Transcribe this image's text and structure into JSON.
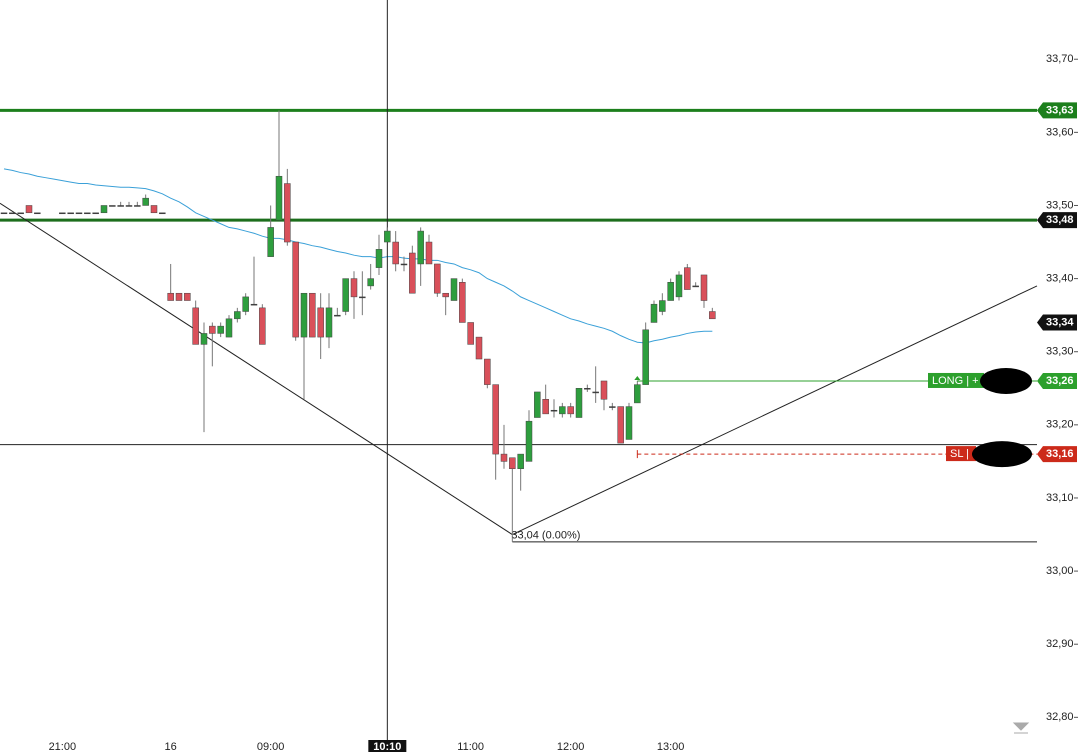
{
  "chart_data": {
    "type": "candlestick",
    "categories": [
      null,
      null,
      null,
      null,
      null,
      null,
      null,
      "21:00",
      null,
      null,
      null,
      null,
      null,
      null,
      null,
      null,
      null,
      null,
      null,
      null,
      "16",
      null,
      null,
      null,
      null,
      null,
      null,
      null,
      null,
      null,
      null,
      null,
      "09:00",
      null,
      null,
      null,
      null,
      null,
      null,
      null,
      null,
      null,
      null,
      null,
      null,
      null,
      null,
      null,
      null,
      null,
      null,
      null,
      null,
      null,
      null,
      null,
      "11:00",
      null,
      null,
      null,
      null,
      null,
      null,
      null,
      null,
      null,
      null,
      null,
      "12:00",
      null,
      null,
      null,
      null,
      null,
      null,
      null,
      null,
      null,
      null,
      null,
      "13:00",
      null,
      null,
      null,
      null,
      null
    ],
    "open": [
      33.49,
      33.49,
      33.49,
      33.5,
      33.49,
      null,
      null,
      33.49,
      33.49,
      33.49,
      33.49,
      33.49,
      33.49,
      33.5,
      33.5,
      33.5,
      33.5,
      33.5,
      33.5,
      33.49,
      33.38,
      33.38,
      33.38,
      33.36,
      33.31,
      33.335,
      33.325,
      33.32,
      33.345,
      33.355,
      33.365,
      33.36,
      33.43,
      33.48,
      33.53,
      33.45,
      33.32,
      33.38,
      33.36,
      33.32,
      33.35,
      33.355,
      33.4,
      33.375,
      33.39,
      33.415,
      33.45,
      33.45,
      33.42,
      33.435,
      33.42,
      33.45,
      33.42,
      33.38,
      33.37,
      33.395,
      33.34,
      33.32,
      33.29,
      33.255,
      33.16,
      33.155,
      33.14,
      33.15,
      33.21,
      33.235,
      33.22,
      33.215,
      33.225,
      33.21,
      33.25,
      33.245,
      33.26,
      33.225,
      33.225,
      33.18,
      33.23,
      33.255,
      33.34,
      33.355,
      33.37,
      33.375,
      33.415,
      33.39,
      33.405,
      33.355
    ],
    "high": [
      33.49,
      33.49,
      33.49,
      33.5,
      33.49,
      null,
      null,
      33.49,
      33.49,
      33.49,
      33.49,
      33.49,
      33.5,
      33.5,
      33.505,
      33.505,
      33.505,
      33.515,
      33.5,
      33.49,
      33.42,
      33.38,
      33.38,
      33.37,
      33.34,
      33.34,
      33.34,
      33.35,
      33.36,
      33.38,
      33.43,
      33.365,
      33.5,
      33.63,
      33.55,
      33.45,
      33.38,
      33.38,
      33.38,
      33.38,
      33.36,
      33.4,
      33.41,
      33.41,
      33.42,
      33.46,
      33.47,
      33.465,
      33.43,
      33.445,
      33.47,
      33.46,
      33.42,
      33.38,
      33.4,
      33.4,
      33.34,
      33.32,
      33.29,
      33.255,
      33.2,
      33.155,
      33.16,
      33.22,
      33.245,
      33.255,
      33.235,
      33.23,
      33.23,
      33.25,
      33.255,
      33.28,
      33.26,
      33.23,
      33.225,
      33.23,
      33.26,
      33.34,
      33.37,
      33.38,
      33.4,
      33.41,
      33.42,
      33.395,
      33.405,
      33.36
    ],
    "low": [
      33.49,
      33.49,
      33.49,
      33.49,
      33.49,
      null,
      null,
      33.49,
      33.49,
      33.49,
      33.49,
      33.49,
      33.49,
      33.5,
      33.5,
      33.5,
      33.5,
      33.5,
      33.49,
      33.49,
      33.37,
      33.37,
      33.37,
      33.31,
      33.19,
      33.28,
      33.32,
      33.32,
      33.34,
      33.35,
      33.365,
      33.31,
      33.43,
      33.48,
      33.445,
      33.315,
      33.235,
      33.32,
      33.29,
      33.305,
      33.35,
      33.35,
      33.345,
      33.35,
      33.385,
      33.405,
      33.45,
      33.41,
      33.41,
      33.38,
      33.39,
      33.42,
      33.375,
      33.35,
      33.37,
      33.34,
      33.31,
      33.29,
      33.25,
      33.125,
      33.14,
      33.04,
      33.11,
      33.15,
      33.21,
      33.215,
      33.21,
      33.21,
      33.21,
      33.21,
      33.245,
      33.23,
      33.22,
      33.22,
      33.175,
      33.18,
      33.23,
      33.255,
      33.34,
      33.35,
      33.37,
      33.37,
      33.385,
      33.39,
      33.36,
      33.345
    ],
    "close": [
      33.49,
      33.49,
      33.49,
      33.49,
      33.49,
      null,
      null,
      33.49,
      33.49,
      33.49,
      33.49,
      33.49,
      33.5,
      33.5,
      33.5,
      33.5,
      33.5,
      33.51,
      33.49,
      33.49,
      33.37,
      33.37,
      33.37,
      33.31,
      33.325,
      33.325,
      33.335,
      33.345,
      33.355,
      33.375,
      33.365,
      33.31,
      33.47,
      33.54,
      33.45,
      33.32,
      33.38,
      33.32,
      33.32,
      33.36,
      33.35,
      33.4,
      33.375,
      33.375,
      33.4,
      33.44,
      33.465,
      33.42,
      33.42,
      33.38,
      33.465,
      33.42,
      33.38,
      33.375,
      33.4,
      33.34,
      33.31,
      33.29,
      33.255,
      33.16,
      33.15,
      33.14,
      33.16,
      33.205,
      33.245,
      33.215,
      33.22,
      33.225,
      33.215,
      33.25,
      33.25,
      33.245,
      33.235,
      33.225,
      33.175,
      33.225,
      33.255,
      33.33,
      33.365,
      33.37,
      33.395,
      33.405,
      33.385,
      33.39,
      33.37,
      33.345
    ],
    "up_color": "#2e9e3e",
    "down_color": "#d9505a",
    "moving_average": {
      "color": "#3aa0d8",
      "values": [
        33.55,
        33.548,
        33.545,
        33.543,
        33.54,
        33.538,
        33.536,
        33.534,
        33.532,
        33.53,
        33.53,
        33.528,
        33.527,
        33.526,
        33.525,
        33.525,
        33.524,
        33.523,
        33.52,
        33.516,
        33.51,
        33.505,
        33.498,
        33.49,
        33.485,
        33.48,
        33.475,
        33.47,
        33.468,
        33.465,
        33.462,
        33.458,
        33.455,
        33.455,
        33.453,
        33.45,
        33.448,
        33.445,
        33.443,
        33.44,
        33.437,
        33.435,
        33.432,
        33.43,
        33.43,
        33.428,
        33.43,
        33.43,
        33.428,
        33.427,
        33.427,
        33.425,
        33.425,
        33.422,
        33.42,
        33.415,
        33.412,
        33.408,
        33.4,
        33.395,
        33.39,
        33.383,
        33.375,
        33.37,
        33.365,
        33.36,
        33.355,
        33.35,
        33.345,
        33.342,
        33.338,
        33.335,
        33.332,
        33.328,
        33.322,
        33.317,
        33.313,
        33.312,
        33.315,
        33.317,
        33.32,
        33.322,
        33.325,
        33.327,
        33.328,
        33.328
      ]
    },
    "xlim": [
      -0.48,
      123.96
    ],
    "ylim": [
      32.769,
      33.781
    ],
    "yticks": [
      {
        "value": 33.7,
        "label": "33,70"
      },
      {
        "value": 33.6,
        "label": "33,60"
      },
      {
        "value": 33.5,
        "label": "33,50"
      },
      {
        "value": 33.4,
        "label": "33,40"
      },
      {
        "value": 33.3,
        "label": "33,30"
      },
      {
        "value": 33.2,
        "label": "33,20"
      },
      {
        "value": 33.1,
        "label": "33,10"
      },
      {
        "value": 33.0,
        "label": "33,00"
      },
      {
        "value": 32.9,
        "label": "32,90"
      },
      {
        "value": 32.8,
        "label": "32,80"
      }
    ],
    "levels": [
      {
        "value": 33.63,
        "color": "#1c7f1c"
      },
      {
        "value": 33.48,
        "color": "#1c6e1c"
      }
    ],
    "trendlines": [
      {
        "x": [
          -0.48,
          61
        ],
        "y": [
          33.503,
          33.05
        ]
      },
      {
        "x": [
          61,
          123.96
        ],
        "y": [
          33.05,
          33.39
        ]
      }
    ],
    "low_marker": {
      "x": 61,
      "value": 33.04,
      "label": "33,04 (0.00%)"
    },
    "crosshair": {
      "x": 46,
      "y": 33.173,
      "label": "10:10"
    },
    "long_position": {
      "x": 76,
      "value": 33.26,
      "label": "LONG | +",
      "color": "#2ca02c"
    },
    "stop_loss": {
      "x": 76,
      "value": 33.16,
      "label": "SL | -",
      "color": "#cc2a1a"
    },
    "price_tags": [
      {
        "value": 33.63,
        "label": "33,63",
        "color": "#1c7f1c"
      },
      {
        "value": 33.48,
        "label": "33,48",
        "color": "#111111"
      },
      {
        "value": 33.34,
        "label": "33,34",
        "color": "#111111"
      },
      {
        "value": 33.26,
        "label": "33,26",
        "color": "#2ca02c"
      },
      {
        "value": 33.16,
        "label": "33,16",
        "color": "#cc2a1a"
      }
    ]
  }
}
